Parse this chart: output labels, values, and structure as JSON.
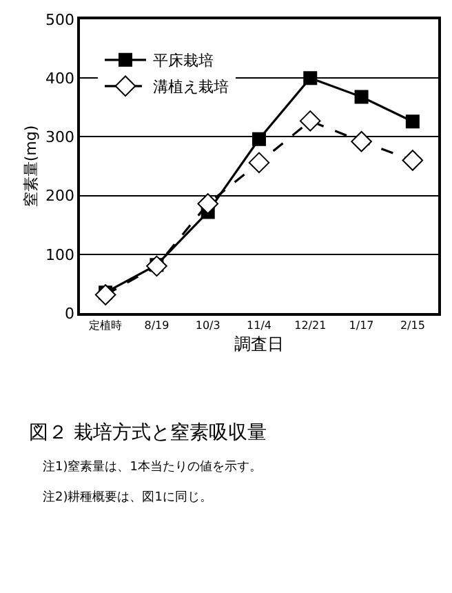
{
  "chart_data": {
    "type": "line",
    "title": "図２ 栽培方式と窒素吸収量",
    "xlabel": "調査日",
    "ylabel": "窒素量(mg)",
    "categories": [
      "定植時",
      "8/19",
      "10/3",
      "11/4",
      "12/21",
      "1/17",
      "2/15"
    ],
    "series": [
      {
        "name": "平床栽培",
        "color": "#000000",
        "marker": "square",
        "line_style": "solid",
        "values": [
          35,
          82,
          172,
          296,
          400,
          368,
          326
        ]
      },
      {
        "name": "溝植え栽培",
        "color": "#000000",
        "marker": "diamond",
        "line_style": "dashed",
        "values": [
          31,
          80,
          186,
          256,
          327,
          292,
          260
        ]
      }
    ],
    "ylim": [
      0,
      500
    ],
    "yticks": [
      0,
      100,
      200,
      300,
      400,
      500
    ],
    "grid": "y",
    "legend": "top left",
    "annotations": [
      "注1)窒素量は、1本当たりの値を示す。",
      "注2)耕種概要は、図1に同じ。"
    ]
  }
}
